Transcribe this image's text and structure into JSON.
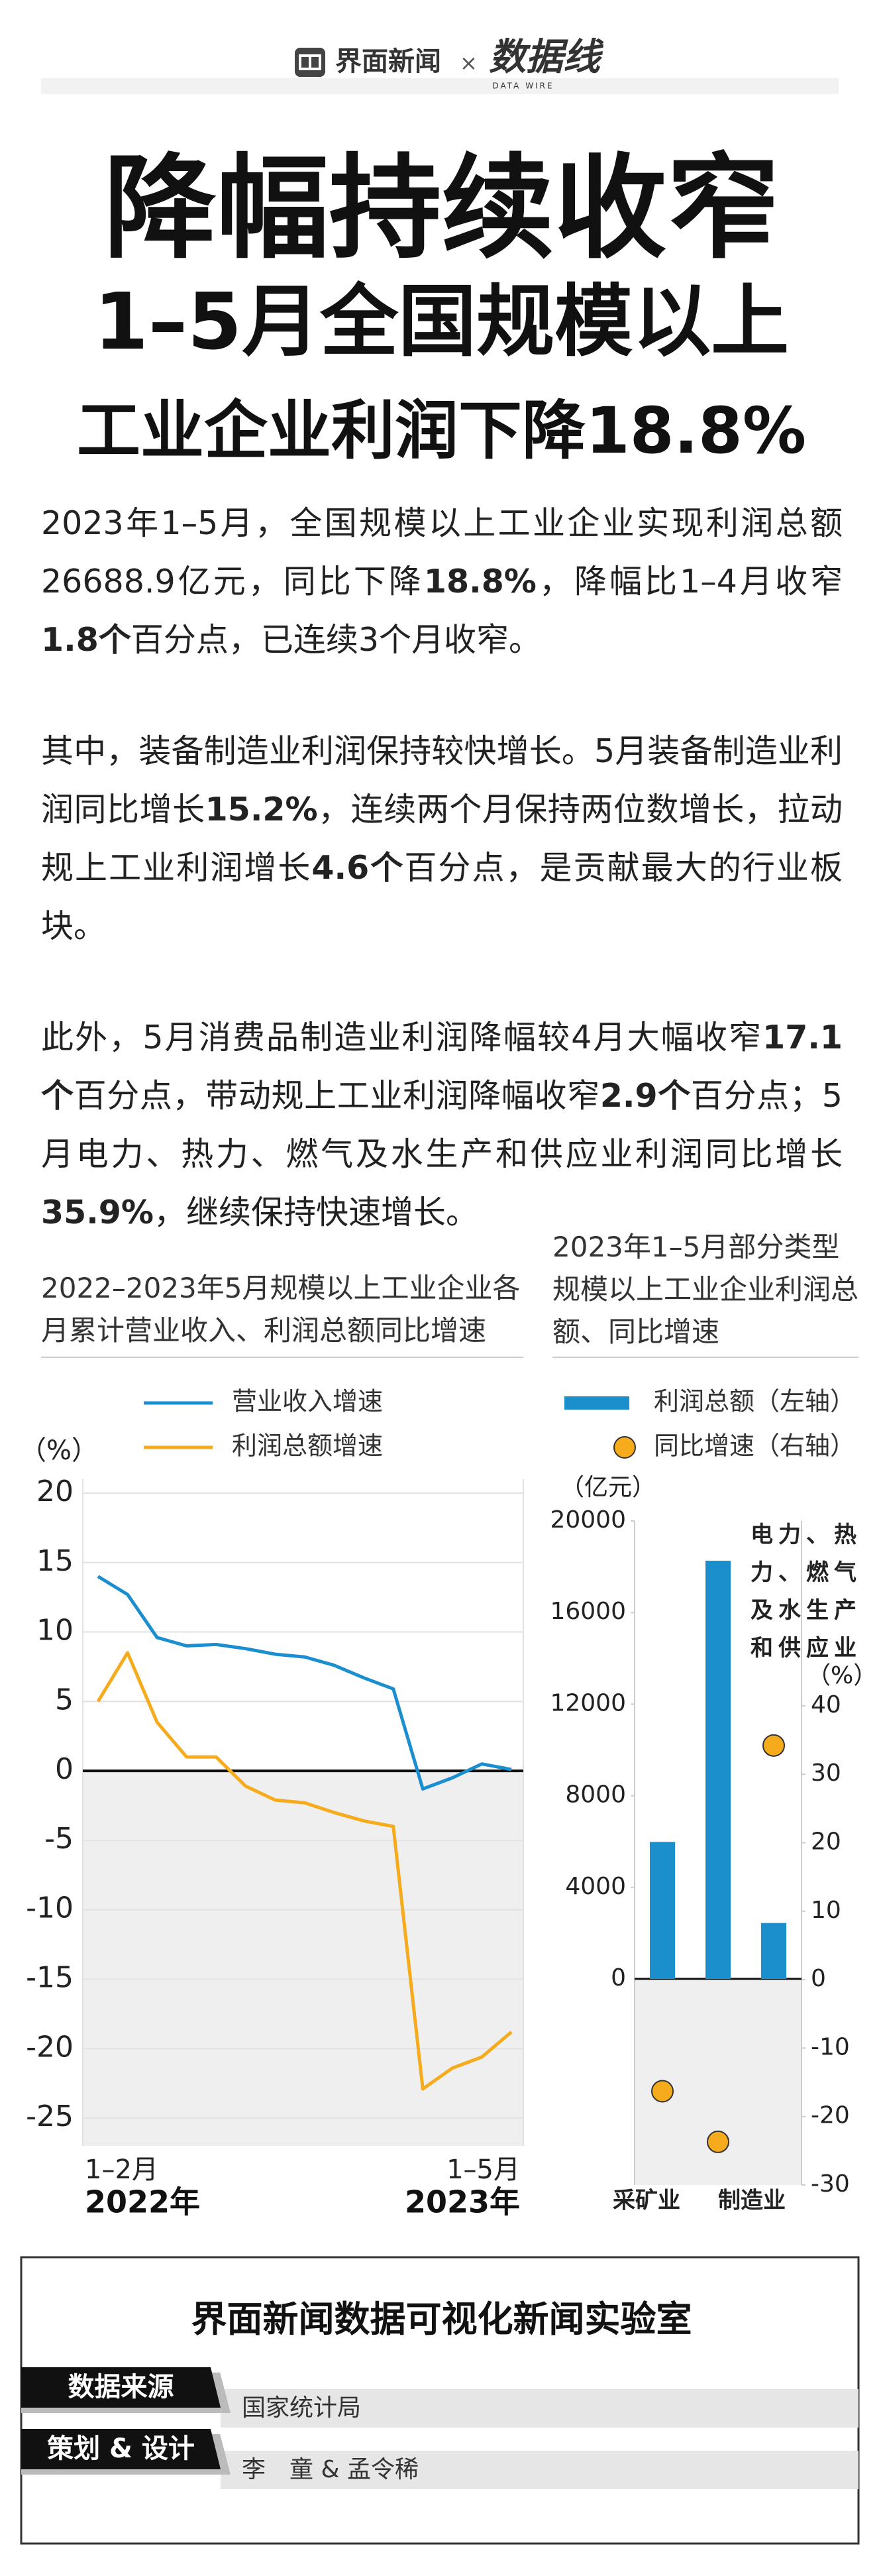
{
  "header": {
    "brand": "界面新闻",
    "separator": "×",
    "partner": "数据线",
    "partner_sub": "DATA WIRE"
  },
  "title": [
    "降幅持续收窄",
    "1–5月全国规模以上",
    "工业企业利润下降18.8%"
  ],
  "paragraphs": [
    [
      {
        "text": "2023年1–5月，全国规模以上工业企业实现利润总额26688.9亿元，同比下降"
      },
      {
        "text": "18.8%",
        "bold": true
      },
      {
        "text": "，降幅比1–4月收窄"
      },
      {
        "text": "1.8个",
        "bold": true
      },
      {
        "text": "百分点，已连续3个月收窄。"
      }
    ],
    [
      {
        "text": "其中，装备制造业利润保持较快增长。5月装备制造业利润同比增长"
      },
      {
        "text": "15.2%",
        "bold": true
      },
      {
        "text": "，连续两个月保持两位数增长，拉动规上工业利润增长"
      },
      {
        "text": "4.6个",
        "bold": true
      },
      {
        "text": "百分点，是贡献最大的行业板块。"
      }
    ],
    [
      {
        "text": "此外，5月消费品制造业利润降幅较4月大幅收窄"
      },
      {
        "text": "17.1个",
        "bold": true
      },
      {
        "text": "百分点，带动规上工业利润降幅收窄"
      },
      {
        "text": "2.9个",
        "bold": true
      },
      {
        "text": "百分点；5月电力、热力、燃气及水生产和供应业利润同比增长"
      },
      {
        "text": "35.9%",
        "bold": true
      },
      {
        "text": "，继续保持快速增长。"
      }
    ]
  ],
  "chart_data": [
    {
      "type": "line",
      "title": "2022–2023年5月规模以上工业企业各月累计营业收入、利润总额同比增速",
      "ylabel": "（%）",
      "categories": [
        "1–2月",
        null,
        null,
        null,
        null,
        null,
        null,
        null,
        null,
        null,
        null,
        null,
        null,
        null,
        "1–5月"
      ],
      "x_group_labels": [
        "2022年",
        "2023年"
      ],
      "series": [
        {
          "name": "营业收入增速",
          "color": "#1b8ecf",
          "values": [
            14.0,
            12.7,
            9.6,
            9.0,
            9.1,
            8.8,
            8.4,
            8.2,
            7.6,
            6.7,
            5.9,
            -1.3,
            -0.5,
            0.5,
            0.1
          ]
        },
        {
          "name": "利润总额增速",
          "color": "#f5ab1b",
          "values": [
            5.0,
            8.5,
            3.5,
            1.0,
            1.0,
            -1.1,
            -2.1,
            -2.3,
            -3.0,
            -3.6,
            -4.0,
            -22.9,
            -21.4,
            -20.6,
            -18.8
          ]
        }
      ],
      "ylim": [
        -27,
        21
      ],
      "yticks": [
        -25,
        -20,
        -15,
        -10,
        -5,
        0,
        5,
        10,
        15,
        20
      ],
      "grid": true
    },
    {
      "type": "bar",
      "title": "2023年1–5月部分类型规模以上工业企业利润总额、同比增速",
      "ylabel": "（亿元）",
      "y2label": "（%）",
      "categories": [
        "采矿业",
        "制造业",
        "电力、热力、燃气及水生产和供应业"
      ],
      "series": [
        {
          "name": "利润总额（左轴）",
          "color": "#1a8fcc",
          "values": [
            5983.3,
            18263.7,
            2441.9
          ]
        },
        {
          "name": "同比增速（右轴）",
          "color": "#f5ab1b",
          "axis": "y2",
          "type": "scatter",
          "values": [
            -16.3,
            -23.7,
            34.2
          ]
        }
      ],
      "ylim": [
        -9000,
        20000
      ],
      "yticks": [
        0,
        4000,
        8000,
        12000,
        16000,
        20000
      ],
      "y2lim": [
        -30,
        67
      ],
      "y2ticks": [
        -30,
        -20,
        -10,
        0,
        10,
        20,
        30,
        40
      ]
    }
  ],
  "footer": {
    "title": "界面新闻数据可视化新闻实验室",
    "rows": [
      [
        "数据来源",
        "国家统计局"
      ],
      [
        "策划 & 设计",
        "李　童 & 孟令稀"
      ]
    ]
  }
}
